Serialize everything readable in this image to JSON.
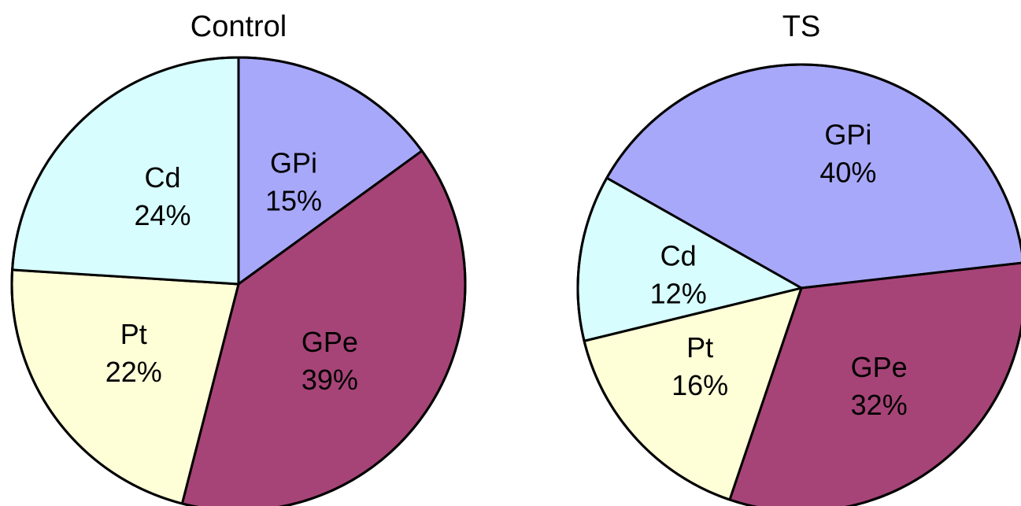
{
  "chart_data": [
    {
      "type": "pie",
      "title": "Control",
      "slices": [
        {
          "label": "GPi",
          "value": 15,
          "value_label": "15%",
          "color": "#a8a8fa"
        },
        {
          "label": "GPe",
          "value": 39,
          "value_label": "39%",
          "color": "#a64477"
        },
        {
          "label": "Pt",
          "value": 22,
          "value_label": "22%",
          "color": "#fefed7"
        },
        {
          "label": "Cd",
          "value": 24,
          "value_label": "24%",
          "color": "#d7fdfe"
        }
      ]
    },
    {
      "type": "pie",
      "title": "TS",
      "slices": [
        {
          "label": "GPi",
          "value": 40,
          "value_label": "40%",
          "color": "#a8a8fa"
        },
        {
          "label": "GPe",
          "value": 32,
          "value_label": "32%",
          "color": "#a64477"
        },
        {
          "label": "Pt",
          "value": 16,
          "value_label": "16%",
          "color": "#fefed7"
        },
        {
          "label": "Cd",
          "value": 12,
          "value_label": "12%",
          "color": "#d7fdfe"
        }
      ]
    }
  ]
}
